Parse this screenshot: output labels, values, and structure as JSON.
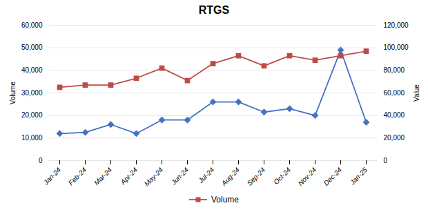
{
  "chart_data": {
    "type": "line",
    "title": "RTGS",
    "categories": [
      "Jan-24",
      "Feb-24",
      "Mar-24",
      "Apr-24",
      "May-24",
      "Jun-24",
      "Jul-24",
      "Aug-24",
      "Sep-24",
      "Oct-24",
      "Nov-24",
      "Dec-24",
      "Jan-25"
    ],
    "series": [
      {
        "color": "#4472C4",
        "marker": "diamond",
        "values": [
          12000,
          12500,
          16000,
          12000,
          18000,
          18000,
          26000,
          26000,
          21500,
          23000,
          20000,
          49000,
          17000
        ]
      },
      {
        "name": "Volume",
        "color": "#BE4B48",
        "marker": "square",
        "axis": "y2",
        "values": [
          65000,
          67000,
          67000,
          73000,
          82000,
          71000,
          86000,
          93000,
          84000,
          93000,
          89000,
          93000,
          97000
        ]
      }
    ],
    "ylabel": "Volume",
    "y2label": "Value",
    "ylim": [
      0,
      60000
    ],
    "yticks": [
      0,
      {
        "value": 10000,
        "label": "10,000"
      },
      {
        "value": 20000,
        "label": "20,000"
      },
      {
        "value": 30000,
        "label": "30,000"
      },
      {
        "value": 40000,
        "label": "40,000"
      },
      {
        "value": 50000,
        "label": "50,000"
      },
      {
        "value": 60000,
        "label": "60,000"
      }
    ],
    "y2lim": [
      0,
      120000
    ],
    "y2ticks": [
      0,
      {
        "value": 20000,
        "label": "20,000"
      },
      {
        "value": 40000,
        "label": "40,000"
      },
      {
        "value": 60000,
        "label": "60,000"
      },
      {
        "value": 80000,
        "label": "80,000"
      },
      {
        "value": 100000,
        "label": "100,000"
      },
      {
        "value": 120000,
        "label": "120,000"
      }
    ],
    "grid": true,
    "legend": "bottom"
  }
}
